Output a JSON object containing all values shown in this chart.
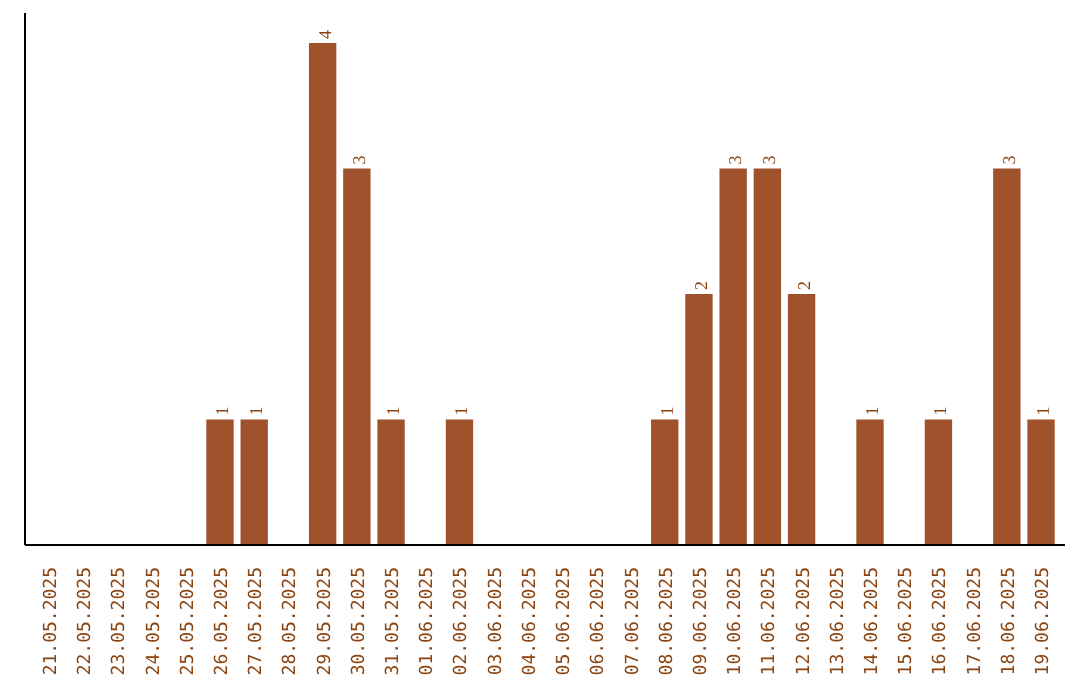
{
  "chart_data": {
    "type": "bar",
    "categories": [
      "21.05.2025",
      "22.05.2025",
      "23.05.2025",
      "24.05.2025",
      "25.05.2025",
      "26.05.2025",
      "27.05.2025",
      "28.05.2025",
      "29.05.2025",
      "30.05.2025",
      "31.05.2025",
      "01.06.2025",
      "02.06.2025",
      "03.06.2025",
      "04.06.2025",
      "05.06.2025",
      "06.06.2025",
      "07.06.2025",
      "08.06.2025",
      "09.06.2025",
      "10.06.2025",
      "11.06.2025",
      "12.06.2025",
      "13.06.2025",
      "14.06.2025",
      "15.06.2025",
      "16.06.2025",
      "17.06.2025",
      "18.06.2025",
      "19.06.2025"
    ],
    "values": [
      0,
      0,
      0,
      0,
      0,
      1,
      1,
      0,
      4,
      3,
      1,
      0,
      1,
      0,
      0,
      0,
      0,
      0,
      1,
      2,
      3,
      3,
      2,
      0,
      1,
      0,
      1,
      0,
      3,
      1
    ],
    "value_labels": [
      null,
      null,
      null,
      null,
      null,
      "1",
      "1",
      null,
      "4",
      "3",
      "1",
      null,
      "1",
      null,
      null,
      null,
      null,
      null,
      "1",
      "2",
      "3",
      "3",
      "2",
      null,
      "1",
      null,
      "1",
      null,
      "3",
      "1"
    ],
    "color": "#a0522d",
    "grid": false,
    "tick_labels": "x"
  }
}
